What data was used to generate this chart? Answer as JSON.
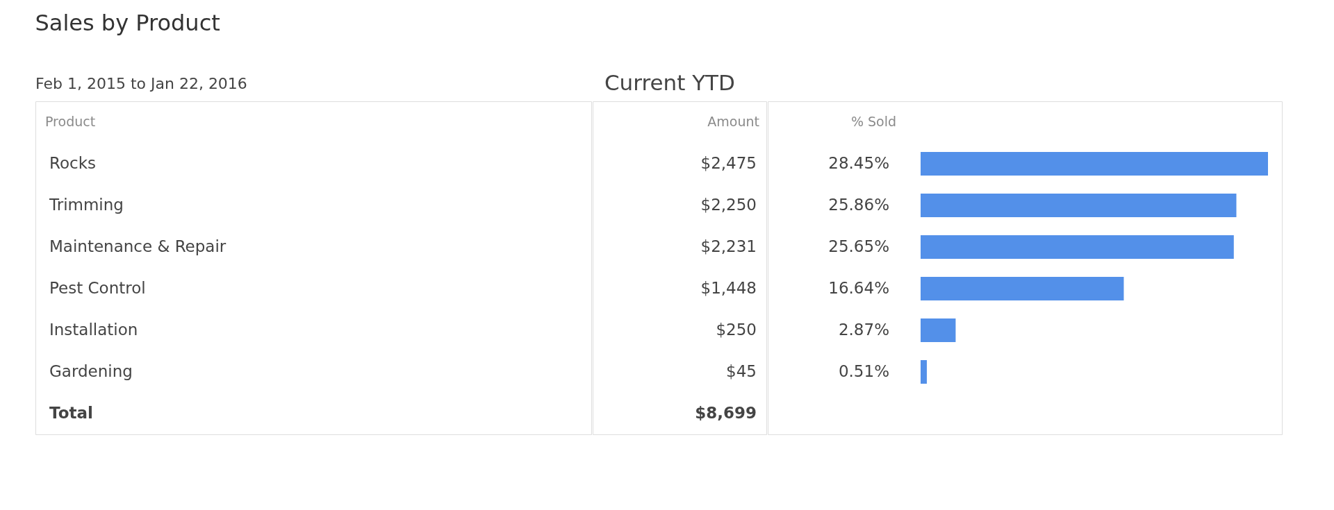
{
  "chart_data": {
    "type": "bar",
    "orientation": "horizontal",
    "title": "Sales by Product",
    "subtitle": "Current YTD",
    "ylabel": "Product",
    "xlabel": "% Sold",
    "categories": [
      "Rocks",
      "Trimming",
      "Maintenance & Repair",
      "Pest Control",
      "Installation",
      "Gardening"
    ],
    "series": [
      {
        "color": "#5390e9",
        "values": [
          28.45,
          25.86,
          25.65,
          16.64,
          2.87,
          0.51
        ],
        "value_labels": [
          "28.45%",
          "25.86%",
          "25.65%",
          "16.64%",
          "2.87%",
          "0.51%"
        ]
      }
    ],
    "annotations": [
      "Feb 1, 2015 to Jan 22, 2016",
      "Amount",
      "$2,475",
      "$2,250",
      "$2,231",
      "$1,448",
      "$250",
      "$45",
      "Total",
      "$8,699"
    ]
  }
}
